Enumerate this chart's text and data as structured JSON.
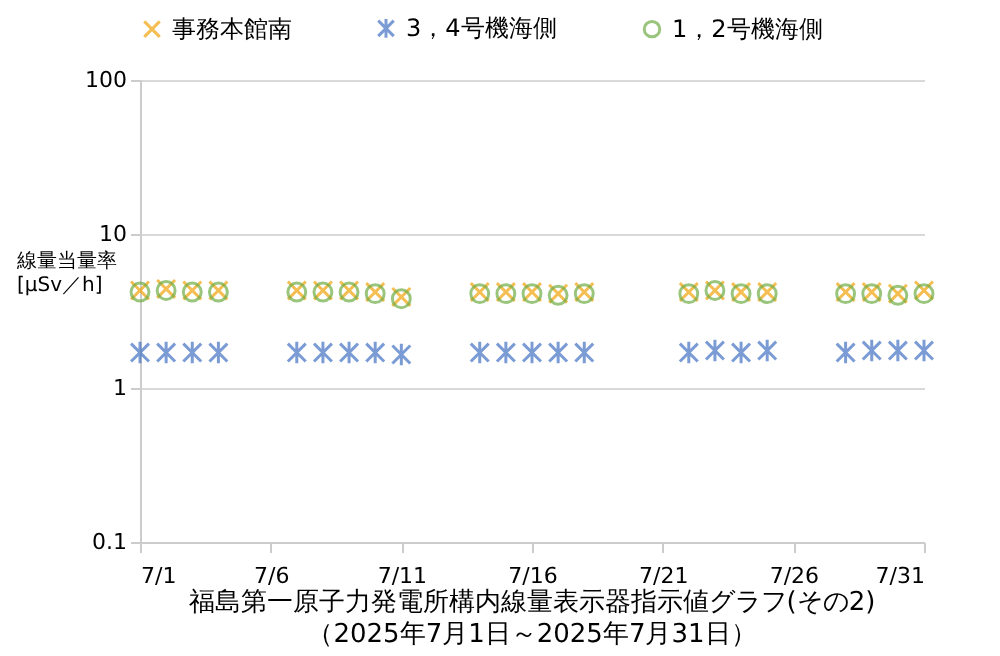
{
  "chart_data": {
    "type": "scatter",
    "title": "福島第一原子力発電所構内線量表示器指示値グラフ(その2)",
    "subtitle": "（2025年7月1日～2025年7月31日）",
    "ylabel": "線量当量率 [μSv／h]",
    "x": [
      "2025-07-01",
      "2025-07-02",
      "2025-07-03",
      "2025-07-04",
      "2025-07-07",
      "2025-07-08",
      "2025-07-09",
      "2025-07-10",
      "2025-07-11",
      "2025-07-14",
      "2025-07-15",
      "2025-07-16",
      "2025-07-17",
      "2025-07-18",
      "2025-07-22",
      "2025-07-23",
      "2025-07-24",
      "2025-07-25",
      "2025-07-28",
      "2025-07-29",
      "2025-07-30",
      "2025-07-31"
    ],
    "series": [
      {
        "name": "事務本館南",
        "color": "#f0a30a",
        "marker": "cross",
        "values": [
          4.3,
          4.4,
          4.3,
          4.3,
          4.3,
          4.3,
          4.3,
          4.2,
          3.9,
          4.2,
          4.2,
          4.2,
          4.1,
          4.2,
          4.2,
          4.3,
          4.2,
          4.2,
          4.2,
          4.2,
          4.1,
          4.3
        ]
      },
      {
        "name": "3，4号機海側",
        "color": "#4472c4",
        "marker": "cross",
        "values": [
          1.7,
          1.7,
          1.7,
          1.7,
          1.7,
          1.7,
          1.7,
          1.7,
          1.65,
          1.7,
          1.7,
          1.7,
          1.7,
          1.7,
          1.7,
          1.75,
          1.7,
          1.75,
          1.7,
          1.75,
          1.75,
          1.75
        ]
      },
      {
        "name": "1，2号機海側",
        "color": "#70ad47",
        "marker": "circle",
        "values": [
          4.2,
          4.3,
          4.2,
          4.2,
          4.2,
          4.2,
          4.2,
          4.1,
          3.8,
          4.1,
          4.1,
          4.1,
          4.0,
          4.1,
          4.1,
          4.3,
          4.1,
          4.1,
          4.1,
          4.1,
          4.0,
          4.1
        ]
      }
    ],
    "xlim": [
      "2025-07-01",
      "2025-07-31"
    ],
    "xticks": [
      {
        "value": "2025-07-01",
        "label": "7/1"
      },
      {
        "value": "2025-07-06",
        "label": "7/6"
      },
      {
        "value": "2025-07-11",
        "label": "7/11"
      },
      {
        "value": "2025-07-16",
        "label": "7/16"
      },
      {
        "value": "2025-07-21",
        "label": "7/21"
      },
      {
        "value": "2025-07-26",
        "label": "7/26"
      },
      {
        "value": "2025-07-31",
        "label": "7/31"
      }
    ],
    "ylim": [
      0.1,
      100
    ],
    "yticks": [
      0.1,
      1,
      10,
      100
    ],
    "log": true,
    "grid": "y",
    "legend": "top"
  }
}
